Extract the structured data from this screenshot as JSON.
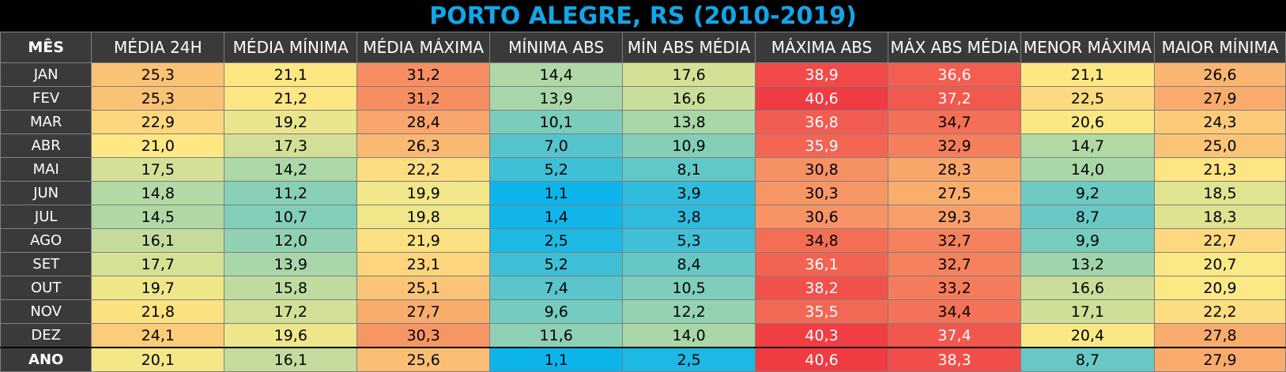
{
  "title": "PORTO ALEGRE, RS (2010-2019)",
  "headers": [
    "MÊS",
    "MÉDIA 24H",
    "MÉDIA MÍNIMA",
    "MÉDIA MÁXIMA",
    "MÍNIMA ABS",
    "MÍN ABS MÉDIA",
    "MÁXIMA ABS",
    "MÁX ABS MÉDIA",
    "MENOR MÁXIMA",
    "MAIOR MÍNIMA"
  ],
  "rows": [
    {
      "month": "JAN",
      "values": [
        "25,3",
        "21,1",
        "31,2",
        "14,4",
        "17,6",
        "38,9",
        "36,6",
        "21,1",
        "26,6"
      ]
    },
    {
      "month": "FEV",
      "values": [
        "25,3",
        "21,2",
        "31,2",
        "13,9",
        "16,6",
        "40,6",
        "37,2",
        "22,5",
        "27,9"
      ]
    },
    {
      "month": "MAR",
      "values": [
        "22,9",
        "19,2",
        "28,4",
        "10,1",
        "13,8",
        "36,8",
        "34,7",
        "20,6",
        "24,3"
      ]
    },
    {
      "month": "ABR",
      "values": [
        "21,0",
        "17,3",
        "26,3",
        "7,0",
        "10,9",
        "35,9",
        "32,9",
        "14,7",
        "25,0"
      ]
    },
    {
      "month": "MAI",
      "values": [
        "17,5",
        "14,2",
        "22,2",
        "5,2",
        "8,1",
        "30,8",
        "28,3",
        "14,0",
        "21,3"
      ]
    },
    {
      "month": "JUN",
      "values": [
        "14,8",
        "11,2",
        "19,9",
        "1,1",
        "3,9",
        "30,3",
        "27,5",
        "9,2",
        "18,5"
      ]
    },
    {
      "month": "JUL",
      "values": [
        "14,5",
        "10,7",
        "19,8",
        "1,4",
        "3,8",
        "30,6",
        "29,3",
        "8,7",
        "18,3"
      ]
    },
    {
      "month": "AGO",
      "values": [
        "16,1",
        "12,0",
        "21,9",
        "2,5",
        "5,3",
        "34,8",
        "32,7",
        "9,9",
        "22,7"
      ]
    },
    {
      "month": "SET",
      "values": [
        "17,7",
        "13,9",
        "23,1",
        "5,2",
        "8,4",
        "36,1",
        "32,7",
        "13,2",
        "20,7"
      ]
    },
    {
      "month": "OUT",
      "values": [
        "19,7",
        "15,8",
        "25,1",
        "7,4",
        "10,5",
        "38,2",
        "33,2",
        "16,6",
        "20,9"
      ]
    },
    {
      "month": "NOV",
      "values": [
        "21,8",
        "17,2",
        "27,7",
        "9,6",
        "12,2",
        "35,5",
        "34,4",
        "17,1",
        "22,2"
      ]
    },
    {
      "month": "DEZ",
      "values": [
        "24,1",
        "19,6",
        "30,3",
        "11,6",
        "14,0",
        "40,3",
        "37,4",
        "20,4",
        "27,8"
      ]
    }
  ],
  "total": {
    "month": "ANO",
    "values": [
      "20,1",
      "16,1",
      "25,6",
      "1,1",
      "2,5",
      "40,6",
      "38,3",
      "8,7",
      "27,9"
    ]
  },
  "colors": {
    "title": "#12a6e8",
    "header_bg": "#3a3a3a",
    "scale_cold": "#0db4ec",
    "scale_mid": "#fde984",
    "scale_hot": "#f03b43"
  }
}
